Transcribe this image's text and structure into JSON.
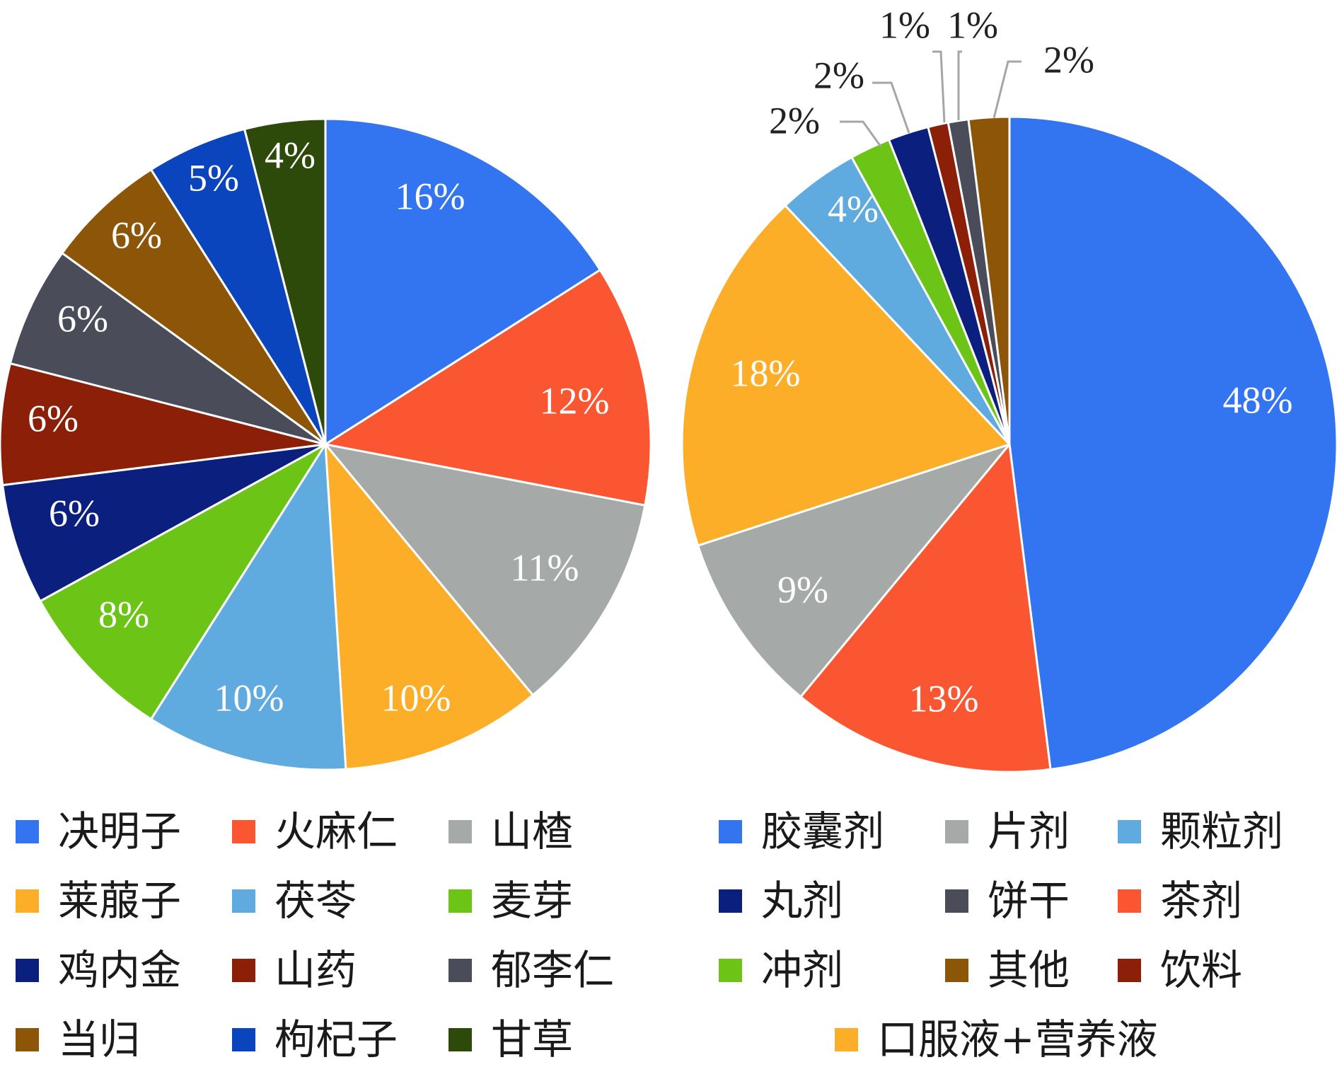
{
  "chart_data": [
    {
      "type": "pie",
      "slices": [
        {
          "label": "决明子",
          "value": 16,
          "text": "16%",
          "color": "#3375F0"
        },
        {
          "label": "火麻仁",
          "value": 12,
          "text": "12%",
          "color": "#FA5632"
        },
        {
          "label": "山楂",
          "value": 11,
          "text": "11%",
          "color": "#A5AAA8"
        },
        {
          "label": "莱菔子",
          "value": 10,
          "text": "10%",
          "color": "#FCAE29"
        },
        {
          "label": "茯苓",
          "value": 10,
          "text": "10%",
          "color": "#5FABE0"
        },
        {
          "label": "麦芽",
          "value": 8,
          "text": "8%",
          "color": "#6CC417"
        },
        {
          "label": "鸡内金",
          "value": 6,
          "text": "6%",
          "color": "#0A1F7E"
        },
        {
          "label": "山药",
          "value": 6,
          "text": "6%",
          "color": "#8C1F08"
        },
        {
          "label": "郁李仁",
          "value": 6,
          "text": "6%",
          "color": "#4A4C5A"
        },
        {
          "label": "当归",
          "value": 6,
          "text": "6%",
          "color": "#8C5508"
        },
        {
          "label": "枸杞子",
          "value": 5,
          "text": "5%",
          "color": "#0B45BE"
        },
        {
          "label": "甘草",
          "value": 4,
          "text": "4%",
          "color": "#2D4A0A"
        }
      ],
      "legend": [
        "决明子",
        "火麻仁",
        "山楂",
        "莱菔子",
        "茯苓",
        "麦芽",
        "鸡内金",
        "山药",
        "郁李仁",
        "当归",
        "枸杞子",
        "甘草"
      ]
    },
    {
      "type": "pie",
      "slices": [
        {
          "label": "胶囊剂",
          "value": 48,
          "text": "48%",
          "color": "#3375F0"
        },
        {
          "label": "茶剂",
          "value": 13,
          "text": "13%",
          "color": "#FA5632"
        },
        {
          "label": "片剂",
          "value": 9,
          "text": "9%",
          "color": "#A5AAA8"
        },
        {
          "label": "口服液+营养液",
          "value": 18,
          "text": "18%",
          "color": "#FCAE29"
        },
        {
          "label": "颗粒剂",
          "value": 4,
          "text": "4%",
          "color": "#5FABE0"
        },
        {
          "label": "冲剂",
          "value": 2,
          "text": "2%",
          "color": "#6CC417"
        },
        {
          "label": "丸剂",
          "value": 2,
          "text": "2%",
          "color": "#0A1F7E"
        },
        {
          "label": "饮料",
          "value": 1,
          "text": "1%",
          "color": "#8C1F08"
        },
        {
          "label": "饼干",
          "value": 1,
          "text": "1%",
          "color": "#4A4C5A"
        },
        {
          "label": "其他",
          "value": 2,
          "text": "2%",
          "color": "#8C5508"
        }
      ],
      "legend": [
        "胶囊剂",
        "片剂",
        "颗粒剂",
        "丸剂",
        "饼干",
        "茶剂",
        "冲剂",
        "其他",
        "饮料",
        "口服液+营养液"
      ]
    }
  ]
}
